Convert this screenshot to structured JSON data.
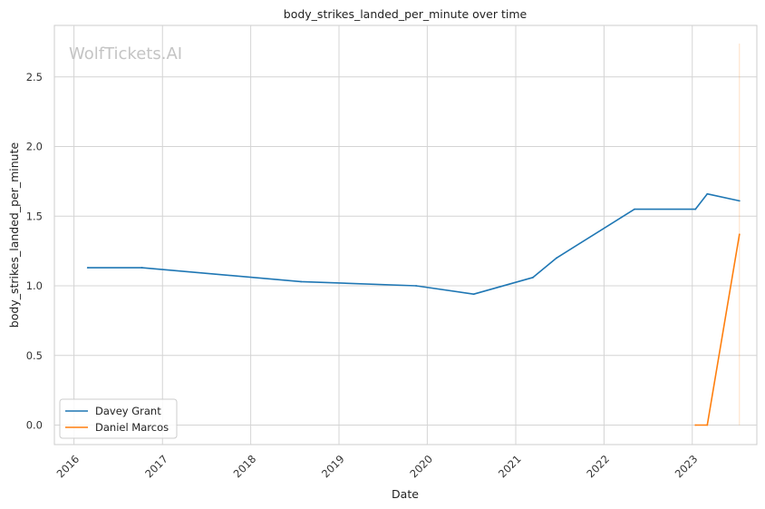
{
  "chart_data": {
    "type": "line",
    "title": "body_strikes_landed_per_minute over time",
    "xlabel": "Date",
    "ylabel": "body_strikes_landed_per_minute",
    "watermark": "WolfTickets.AI",
    "x_ticks": [
      "2016",
      "2017",
      "2018",
      "2019",
      "2020",
      "2021",
      "2022",
      "2023"
    ],
    "y_ticks": [
      "0.0",
      "0.5",
      "1.0",
      "1.5",
      "2.0",
      "2.5"
    ],
    "xlim": [
      "2015-10-12",
      "2023-09-25"
    ],
    "ylim": [
      -0.14,
      2.87
    ],
    "grid": true,
    "legend_position": "lower-left",
    "series": [
      {
        "name": "Davey Grant",
        "color": "#1f77b4",
        "points": [
          {
            "x": "2016-02-27",
            "y": 1.13
          },
          {
            "x": "2016-10-08",
            "y": 1.13
          },
          {
            "x": "2018-07-28",
            "y": 1.03
          },
          {
            "x": "2019-11-16",
            "y": 1.0
          },
          {
            "x": "2020-07-11",
            "y": 0.94
          },
          {
            "x": "2021-03-13",
            "y": 1.06
          },
          {
            "x": "2021-06-19",
            "y": 1.2
          },
          {
            "x": "2022-05-07",
            "y": 1.55
          },
          {
            "x": "2023-01-14",
            "y": 1.55
          },
          {
            "x": "2023-03-04",
            "y": 1.66
          },
          {
            "x": "2023-07-15",
            "y": 1.61
          }
        ]
      },
      {
        "name": "Daniel Marcos",
        "color": "#ff7f0e",
        "points": [
          {
            "x": "2023-01-14",
            "y": 0.0
          },
          {
            "x": "2023-03-04",
            "y": 0.0
          },
          {
            "x": "2023-07-15",
            "y": 1.37
          }
        ]
      }
    ],
    "reference_line": {
      "x": "2023-07-15",
      "y_from": 0.0,
      "y_to": 2.74,
      "color": "#ff7f0e",
      "opacity": 0.25
    }
  }
}
